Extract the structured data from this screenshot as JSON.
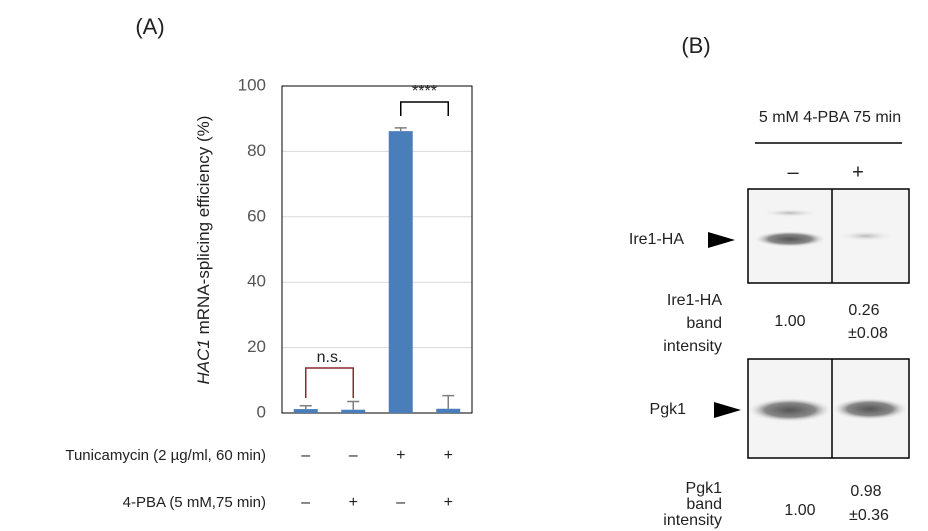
{
  "chart_data": {
    "type": "bar",
    "panel_label": "(A)",
    "ylabel_italic": "HAC1",
    "ylabel": "mRNA-splicing efficiency (%)",
    "categories": [
      null,
      null,
      null,
      null
    ],
    "values": [
      1.2,
      1.0,
      86.2,
      1.3
    ],
    "errors": [
      1.0,
      2.5,
      1.0,
      4.0
    ],
    "color": "#4a7ebb",
    "error_color": "#7f7f7f",
    "ylim": [
      0,
      100
    ],
    "yticks": [
      0,
      20,
      40,
      60,
      80,
      100
    ],
    "grid": true,
    "annotations": [
      "n.s.",
      "****"
    ],
    "conditions": [
      {
        "label": "Tunicamycin (2 µg/ml, 60 min)",
        "signs": [
          "–",
          "–",
          "+",
          "+"
        ]
      },
      {
        "label": "4-PBA (5 mM,75 min)",
        "signs": [
          "–",
          "+",
          "–",
          "+"
        ]
      }
    ]
  },
  "panel_b": {
    "panel_label": "(B)",
    "header": "5 mM 4-PBA 75 min",
    "lanes": [
      "–",
      "+"
    ],
    "blots": [
      {
        "label": "Ire1-HA",
        "intensity_label": [
          "Ire1-HA",
          "band",
          "intensity"
        ],
        "intensity_values": [
          [
            "1.00"
          ],
          [
            "0.26",
            "±0.08"
          ]
        ]
      },
      {
        "label": "Pgk1",
        "intensity_label": [
          "Pgk1",
          "band",
          "intensity"
        ],
        "intensity_values": [
          [
            "1.00"
          ],
          [
            "0.98",
            "±0.36"
          ]
        ]
      }
    ]
  }
}
